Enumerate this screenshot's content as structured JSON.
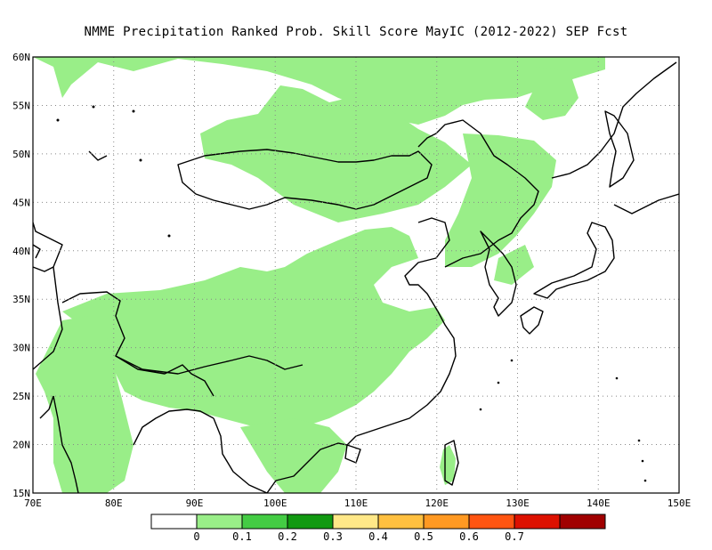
{
  "title": "NMME  Precipitation Ranked Prob. Skill Score MayIC (2012-2022) SEP Fcst",
  "map": {
    "lon_range": [
      70,
      150
    ],
    "lat_range": [
      15,
      60
    ],
    "lon_ticks": [
      "70E",
      "80E",
      "90E",
      "100E",
      "110E",
      "120E",
      "130E",
      "140E",
      "150E"
    ],
    "lat_ticks": [
      "15N",
      "20N",
      "25N",
      "30N",
      "35N",
      "40N",
      "45N",
      "50N",
      "55N",
      "60N"
    ],
    "grid": true,
    "colors": {
      "skill_shade": "#99ee88",
      "coast": "#000000",
      "grid": "#888888"
    }
  },
  "legend": {
    "boxes": [
      "#ffffff",
      "#99ee88",
      "#44cc44",
      "#119911",
      "#ffe888",
      "#ffc040",
      "#ff9922",
      "#ff5511",
      "#dd1100",
      "#a00000"
    ],
    "labels": [
      "0",
      "0.1",
      "0.2",
      "0.3",
      "0.4",
      "0.5",
      "0.6",
      "0.7"
    ]
  }
}
